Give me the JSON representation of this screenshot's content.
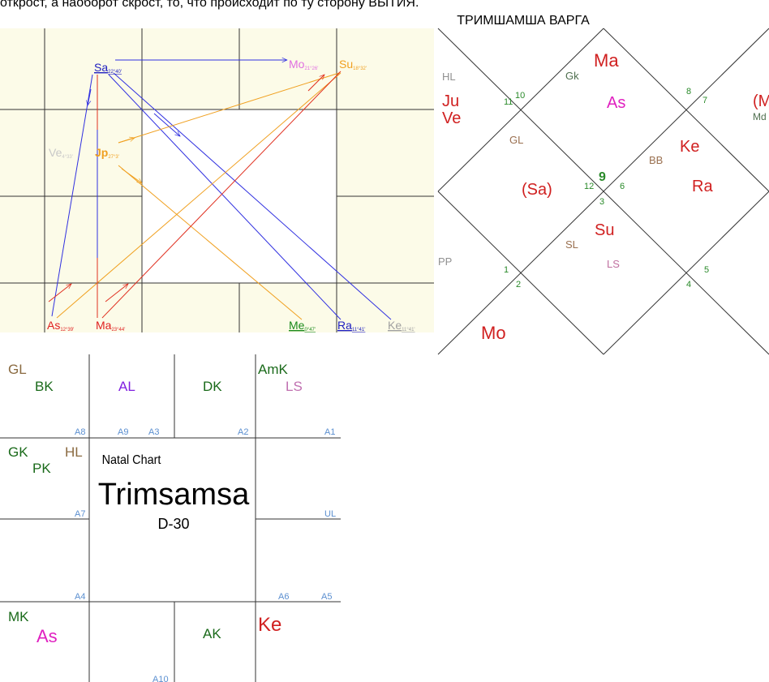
{
  "header_text": "открост, а наоборот скрост, то, что происходит по ту сторону ВЫТИЯ.",
  "chart_title": "ТРИМШАМША ВАРГА",
  "planet_chart": {
    "planets": [
      {
        "label": "Sa",
        "degree": "22°40'"
      },
      {
        "label": "Mo",
        "degree": "21°26'"
      },
      {
        "label": "Su",
        "degree": "18°32'"
      },
      {
        "label": "Ve",
        "degree": "4°33'"
      },
      {
        "label": "Jp",
        "degree": "27°3'"
      },
      {
        "label": "As",
        "degree": "12°39'"
      },
      {
        "label": "Ma",
        "degree": "23°44'"
      },
      {
        "label": "Me",
        "degree": "0°47'"
      },
      {
        "label": "Ra",
        "degree": "11°41'"
      },
      {
        "label": "Ke",
        "degree": "11°41'"
      }
    ]
  },
  "varga_chart": {
    "labels": [
      "HL",
      "Ju",
      "Ve",
      "Gk",
      "Ma",
      "As",
      "GL",
      "Ke",
      "BB",
      "Ra",
      "(Sa)",
      "Su",
      "SL",
      "LS",
      "PP",
      "Mo",
      "(M",
      "Md"
    ],
    "house_numbers": [
      11,
      10,
      8,
      7,
      9,
      12,
      6,
      3,
      1,
      2,
      4,
      5
    ]
  },
  "natal_chart": {
    "caption": "Natal Chart",
    "title": "Trimsamsa",
    "subtitle": "D-30",
    "cells": [
      "GL",
      "BK",
      "AL",
      "DK",
      "AmK",
      "LS",
      "A8",
      "A9",
      "A3",
      "A2",
      "A1",
      "GK",
      "PK",
      "HL",
      "A7",
      "UL",
      "A4",
      "A6",
      "A5",
      "MK",
      "As",
      "AK",
      "Ke",
      "A10"
    ]
  }
}
